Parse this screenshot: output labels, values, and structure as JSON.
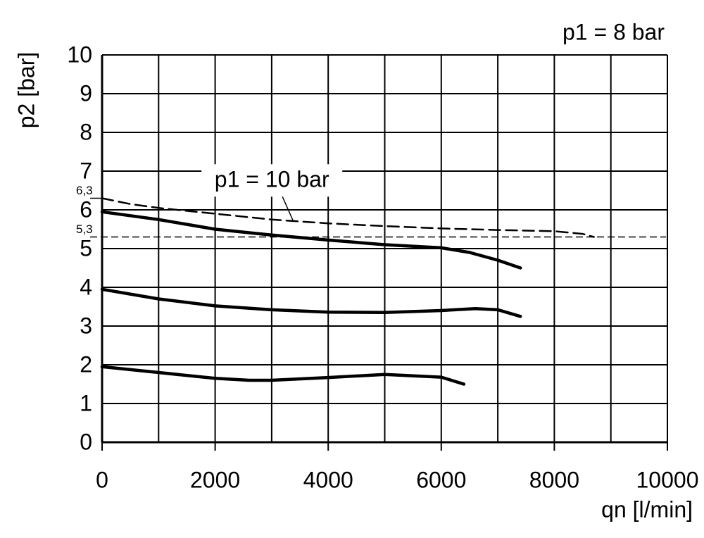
{
  "chart_data": {
    "type": "line",
    "annotations": [
      "p1 = 8 bar"
    ],
    "x_label": "qn [l/min]",
    "y_label": "p2 [bar]",
    "xlim": [
      0,
      10000
    ],
    "xticks": [
      0,
      2000,
      4000,
      6000,
      8000,
      10000
    ],
    "x_minor_ticks": [
      1000,
      3000,
      5000,
      7000,
      9000
    ],
    "ylim": [
      0,
      10
    ],
    "yticks": [
      0,
      1,
      2,
      3,
      4,
      5,
      6,
      7,
      8,
      9,
      10
    ],
    "grid": true,
    "reference_lines": [
      {
        "value": 6.3,
        "label": "6,3"
      },
      {
        "value": 5.3,
        "label": "5,3"
      }
    ],
    "series": [
      {
        "name": "p1 = 10 bar",
        "color": "#000000",
        "dashed": true,
        "x": [
          0,
          500,
          1000,
          2000,
          3000,
          4000,
          5000,
          6000,
          7000,
          8000,
          8500,
          8700
        ],
        "values": [
          6.3,
          6.15,
          6.05,
          5.9,
          5.75,
          5.65,
          5.58,
          5.52,
          5.48,
          5.45,
          5.38,
          5.3
        ]
      },
      {
        "color": "#000000",
        "dashed": false,
        "x": [
          0,
          1000,
          2000,
          3000,
          4000,
          5000,
          6000,
          6500,
          7000,
          7400
        ],
        "values": [
          5.95,
          5.75,
          5.5,
          5.35,
          5.22,
          5.1,
          5.02,
          4.9,
          4.7,
          4.5
        ]
      },
      {
        "color": "#000000",
        "dashed": false,
        "x": [
          0,
          1000,
          2000,
          3000,
          4000,
          5000,
          6000,
          6600,
          7000,
          7400
        ],
        "values": [
          3.95,
          3.7,
          3.52,
          3.42,
          3.36,
          3.35,
          3.4,
          3.45,
          3.42,
          3.25
        ]
      },
      {
        "color": "#000000",
        "dashed": false,
        "x": [
          0,
          1000,
          2000,
          2600,
          3000,
          4000,
          5000,
          6000,
          6400
        ],
        "values": [
          1.95,
          1.8,
          1.65,
          1.6,
          1.6,
          1.67,
          1.75,
          1.68,
          1.5
        ]
      }
    ]
  }
}
